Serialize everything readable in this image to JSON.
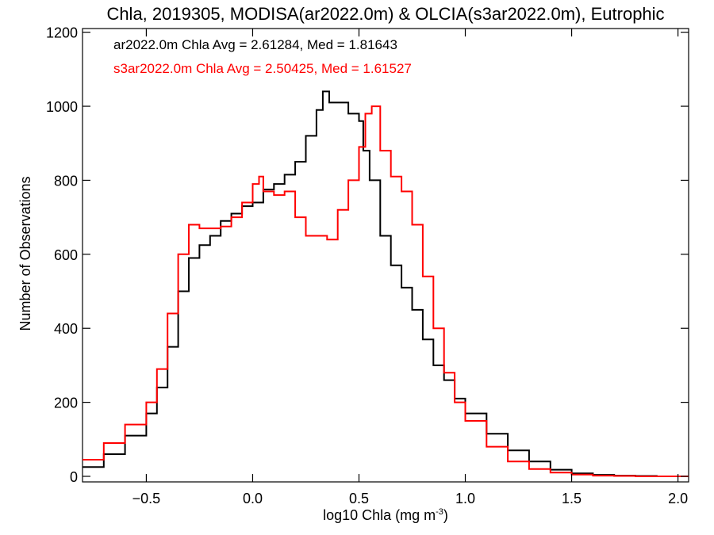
{
  "chart_data": {
    "type": "line",
    "title": "Chla, 2019305, MODISA(ar2022.0m) & OLCIA(s3ar2022.0m), Eutrophic",
    "xlabel_base": "log10 Chla (mg m",
    "xlabel_sup": "-3",
    "xlabel_close": ")",
    "ylabel": "Number of Observations",
    "xlim": [
      -0.8,
      2.05
    ],
    "ylim": [
      -15,
      1210
    ],
    "xticks": [
      -0.5,
      0.0,
      0.5,
      1.0,
      1.5,
      2.0
    ],
    "xtick_labels": [
      "−0.5",
      "0.0",
      "0.5",
      "1.0",
      "1.5",
      "2.0"
    ],
    "yticks": [
      0,
      200,
      400,
      600,
      800,
      1000,
      1200
    ],
    "ytick_labels": [
      "0",
      "200",
      "400",
      "600",
      "800",
      "1000",
      "1200"
    ],
    "step_style": "histogram",
    "series": [
      {
        "name": "ar2022.0m",
        "annotation": "ar2022.0m Chla Avg = 2.61284, Med = 1.81643",
        "color": "#000000",
        "x": [
          -0.8,
          -0.7,
          -0.6,
          -0.5,
          -0.45,
          -0.4,
          -0.35,
          -0.3,
          -0.25,
          -0.2,
          -0.15,
          -0.1,
          -0.05,
          0.0,
          0.05,
          0.1,
          0.15,
          0.2,
          0.25,
          0.3,
          0.33,
          0.36,
          0.4,
          0.45,
          0.5,
          0.52,
          0.55,
          0.6,
          0.65,
          0.7,
          0.75,
          0.8,
          0.85,
          0.9,
          0.95,
          1.0,
          1.1,
          1.2,
          1.3,
          1.4,
          1.5,
          1.6,
          1.7,
          1.8,
          1.9,
          2.05
        ],
        "y": [
          25,
          60,
          110,
          170,
          240,
          350,
          500,
          590,
          625,
          650,
          690,
          710,
          730,
          740,
          775,
          790,
          815,
          850,
          920,
          990,
          1040,
          1010,
          1010,
          980,
          960,
          880,
          800,
          650,
          570,
          510,
          450,
          370,
          300,
          260,
          210,
          170,
          115,
          70,
          40,
          18,
          8,
          4,
          2,
          1,
          0,
          0
        ]
      },
      {
        "name": "s3ar2022.0m",
        "annotation": "s3ar2022.0m Chla Avg = 2.50425, Med = 1.61527",
        "color": "#ff0000",
        "x": [
          -0.8,
          -0.7,
          -0.6,
          -0.5,
          -0.45,
          -0.4,
          -0.35,
          -0.3,
          -0.25,
          -0.2,
          -0.15,
          -0.1,
          -0.05,
          0.0,
          0.03,
          0.05,
          0.1,
          0.15,
          0.2,
          0.25,
          0.3,
          0.35,
          0.4,
          0.45,
          0.5,
          0.53,
          0.56,
          0.6,
          0.65,
          0.7,
          0.75,
          0.8,
          0.85,
          0.9,
          0.95,
          1.0,
          1.1,
          1.2,
          1.3,
          1.4,
          1.5,
          1.6,
          1.7,
          1.8,
          1.9,
          2.05
        ],
        "y": [
          45,
          90,
          140,
          200,
          290,
          440,
          600,
          680,
          670,
          670,
          675,
          700,
          740,
          790,
          810,
          770,
          760,
          770,
          700,
          650,
          650,
          640,
          720,
          800,
          890,
          980,
          1000,
          880,
          810,
          770,
          680,
          540,
          400,
          280,
          200,
          150,
          80,
          40,
          20,
          10,
          5,
          2,
          1,
          0,
          0,
          0
        ]
      }
    ]
  }
}
